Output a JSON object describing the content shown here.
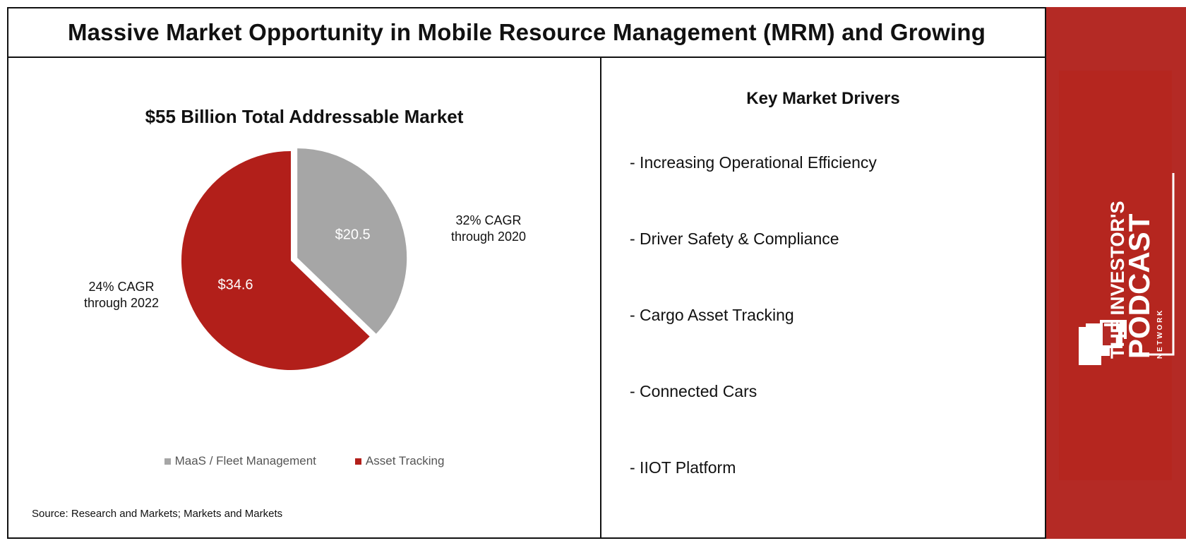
{
  "header": {
    "title": "Massive Market Opportunity in Mobile Resource Management (MRM) and Growing"
  },
  "chart_data": {
    "type": "pie",
    "title": "$55 Billion Total Addressable Market",
    "categories": [
      "MaaS / Fleet Management",
      "Asset Tracking"
    ],
    "values": [
      20.5,
      34.6
    ],
    "value_labels": [
      "$20.5",
      "$34.6"
    ],
    "colors": [
      "#a6a6a6",
      "#b21f1a"
    ],
    "annotations": [
      "32% CAGR through 2020",
      "24% CAGR through 2022"
    ],
    "legend_position": "bottom",
    "exploded_slice": "MaaS / Fleet Management"
  },
  "annotations": {
    "maas": {
      "line1": "32% CAGR",
      "line2": "through 2020"
    },
    "asset": {
      "line1": "24% CAGR",
      "line2": "through 2022"
    }
  },
  "legend": {
    "items": [
      {
        "label": "MaaS / Fleet Management",
        "color": "#a6a6a6"
      },
      {
        "label": "Asset Tracking",
        "color": "#b21f1a"
      }
    ]
  },
  "source": "Source: Research and Markets; Markets and Markets",
  "drivers": {
    "title": "Key Market Drivers",
    "items": [
      "- Increasing Operational Efficiency",
      "- Driver Safety & Compliance",
      "- Cargo Asset Tracking",
      "- Connected Cars",
      "- IIOT Platform"
    ]
  },
  "brand": {
    "line1": "THE INVESTOR'S",
    "line2": "PODCAST",
    "line3": "N E T W O R K",
    "color": "#b42a25"
  }
}
